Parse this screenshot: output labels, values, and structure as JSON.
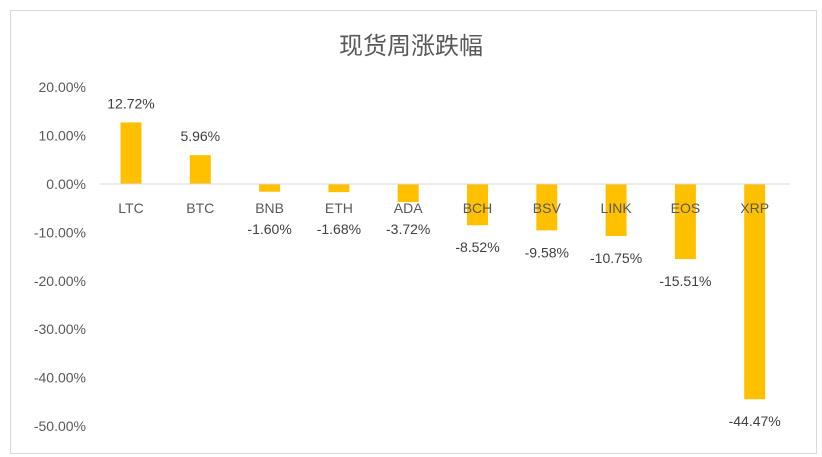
{
  "chart_data": {
    "type": "bar",
    "title": "现货周涨跌幅",
    "categories": [
      "LTC",
      "BTC",
      "BNB",
      "ETH",
      "ADA",
      "BCH",
      "BSV",
      "LINK",
      "EOS",
      "XRP"
    ],
    "values": [
      12.72,
      5.96,
      -1.6,
      -1.68,
      -3.72,
      -8.52,
      -9.58,
      -10.75,
      -15.51,
      -44.47
    ],
    "data_labels": [
      "12.72%",
      "5.96%",
      "-1.60%",
      "-1.68%",
      "-3.72%",
      "-8.52%",
      "-9.58%",
      "-10.75%",
      "-15.51%",
      "-44.47%"
    ],
    "ylim": [
      -50,
      20
    ],
    "yticks": [
      20,
      10,
      0,
      -10,
      -20,
      -30,
      -40,
      -50
    ],
    "ytick_labels": [
      "20.00%",
      "10.00%",
      "0.00%",
      "-10.00%",
      "-20.00%",
      "-30.00%",
      "-40.00%",
      "-50.00%"
    ],
    "bar_color": "#FFC000",
    "grid": false,
    "legend": "none"
  }
}
